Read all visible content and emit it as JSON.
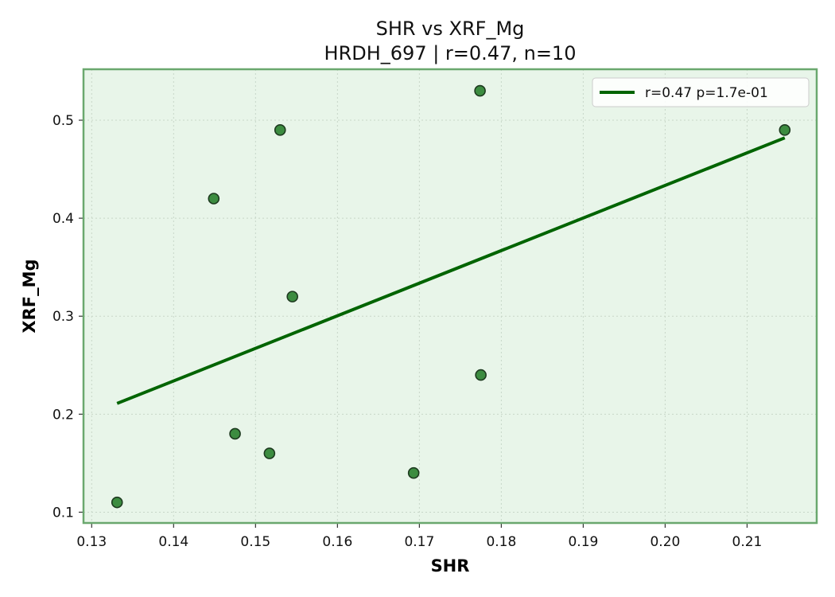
{
  "chart_data": {
    "type": "scatter",
    "title": "SHR vs XRF_Mg",
    "subtitle": "HRDH_697 | r=0.47, n=10",
    "xlabel": "SHR",
    "ylabel": "XRF_Mg",
    "xlim": [
      0.129,
      0.2185
    ],
    "ylim": [
      0.089,
      0.552
    ],
    "xticks": [
      0.13,
      0.14,
      0.15,
      0.16,
      0.17,
      0.18,
      0.19,
      0.2,
      0.21
    ],
    "xtick_labels": [
      "0.13",
      "0.14",
      "0.15",
      "0.16",
      "0.17",
      "0.18",
      "0.19",
      "0.20",
      "0.21"
    ],
    "yticks": [
      0.1,
      0.2,
      0.3,
      0.4,
      0.5
    ],
    "ytick_labels": [
      "0.1",
      "0.2",
      "0.3",
      "0.4",
      "0.5"
    ],
    "grid": true,
    "legend_position": "top-right",
    "series": [
      {
        "kind": "points",
        "x": [
          0.1331,
          0.1449,
          0.1475,
          0.1517,
          0.153,
          0.1545,
          0.1693,
          0.1774,
          0.1775,
          0.2146
        ],
        "y": [
          0.11,
          0.42,
          0.18,
          0.16,
          0.49,
          0.32,
          0.14,
          0.53,
          0.24,
          0.49
        ]
      },
      {
        "kind": "fit-line",
        "name": "r=0.47  p=1.7e-01",
        "x": [
          0.1331,
          0.2146
        ],
        "y": [
          0.211,
          0.482
        ]
      }
    ],
    "colors": {
      "background": "#e8f5e9",
      "frame": "#6aa86e",
      "point_fill": "#3c8c40",
      "point_edge": "#1d3a1f",
      "line": "#006400",
      "grid": "#c7d6c8"
    }
  }
}
